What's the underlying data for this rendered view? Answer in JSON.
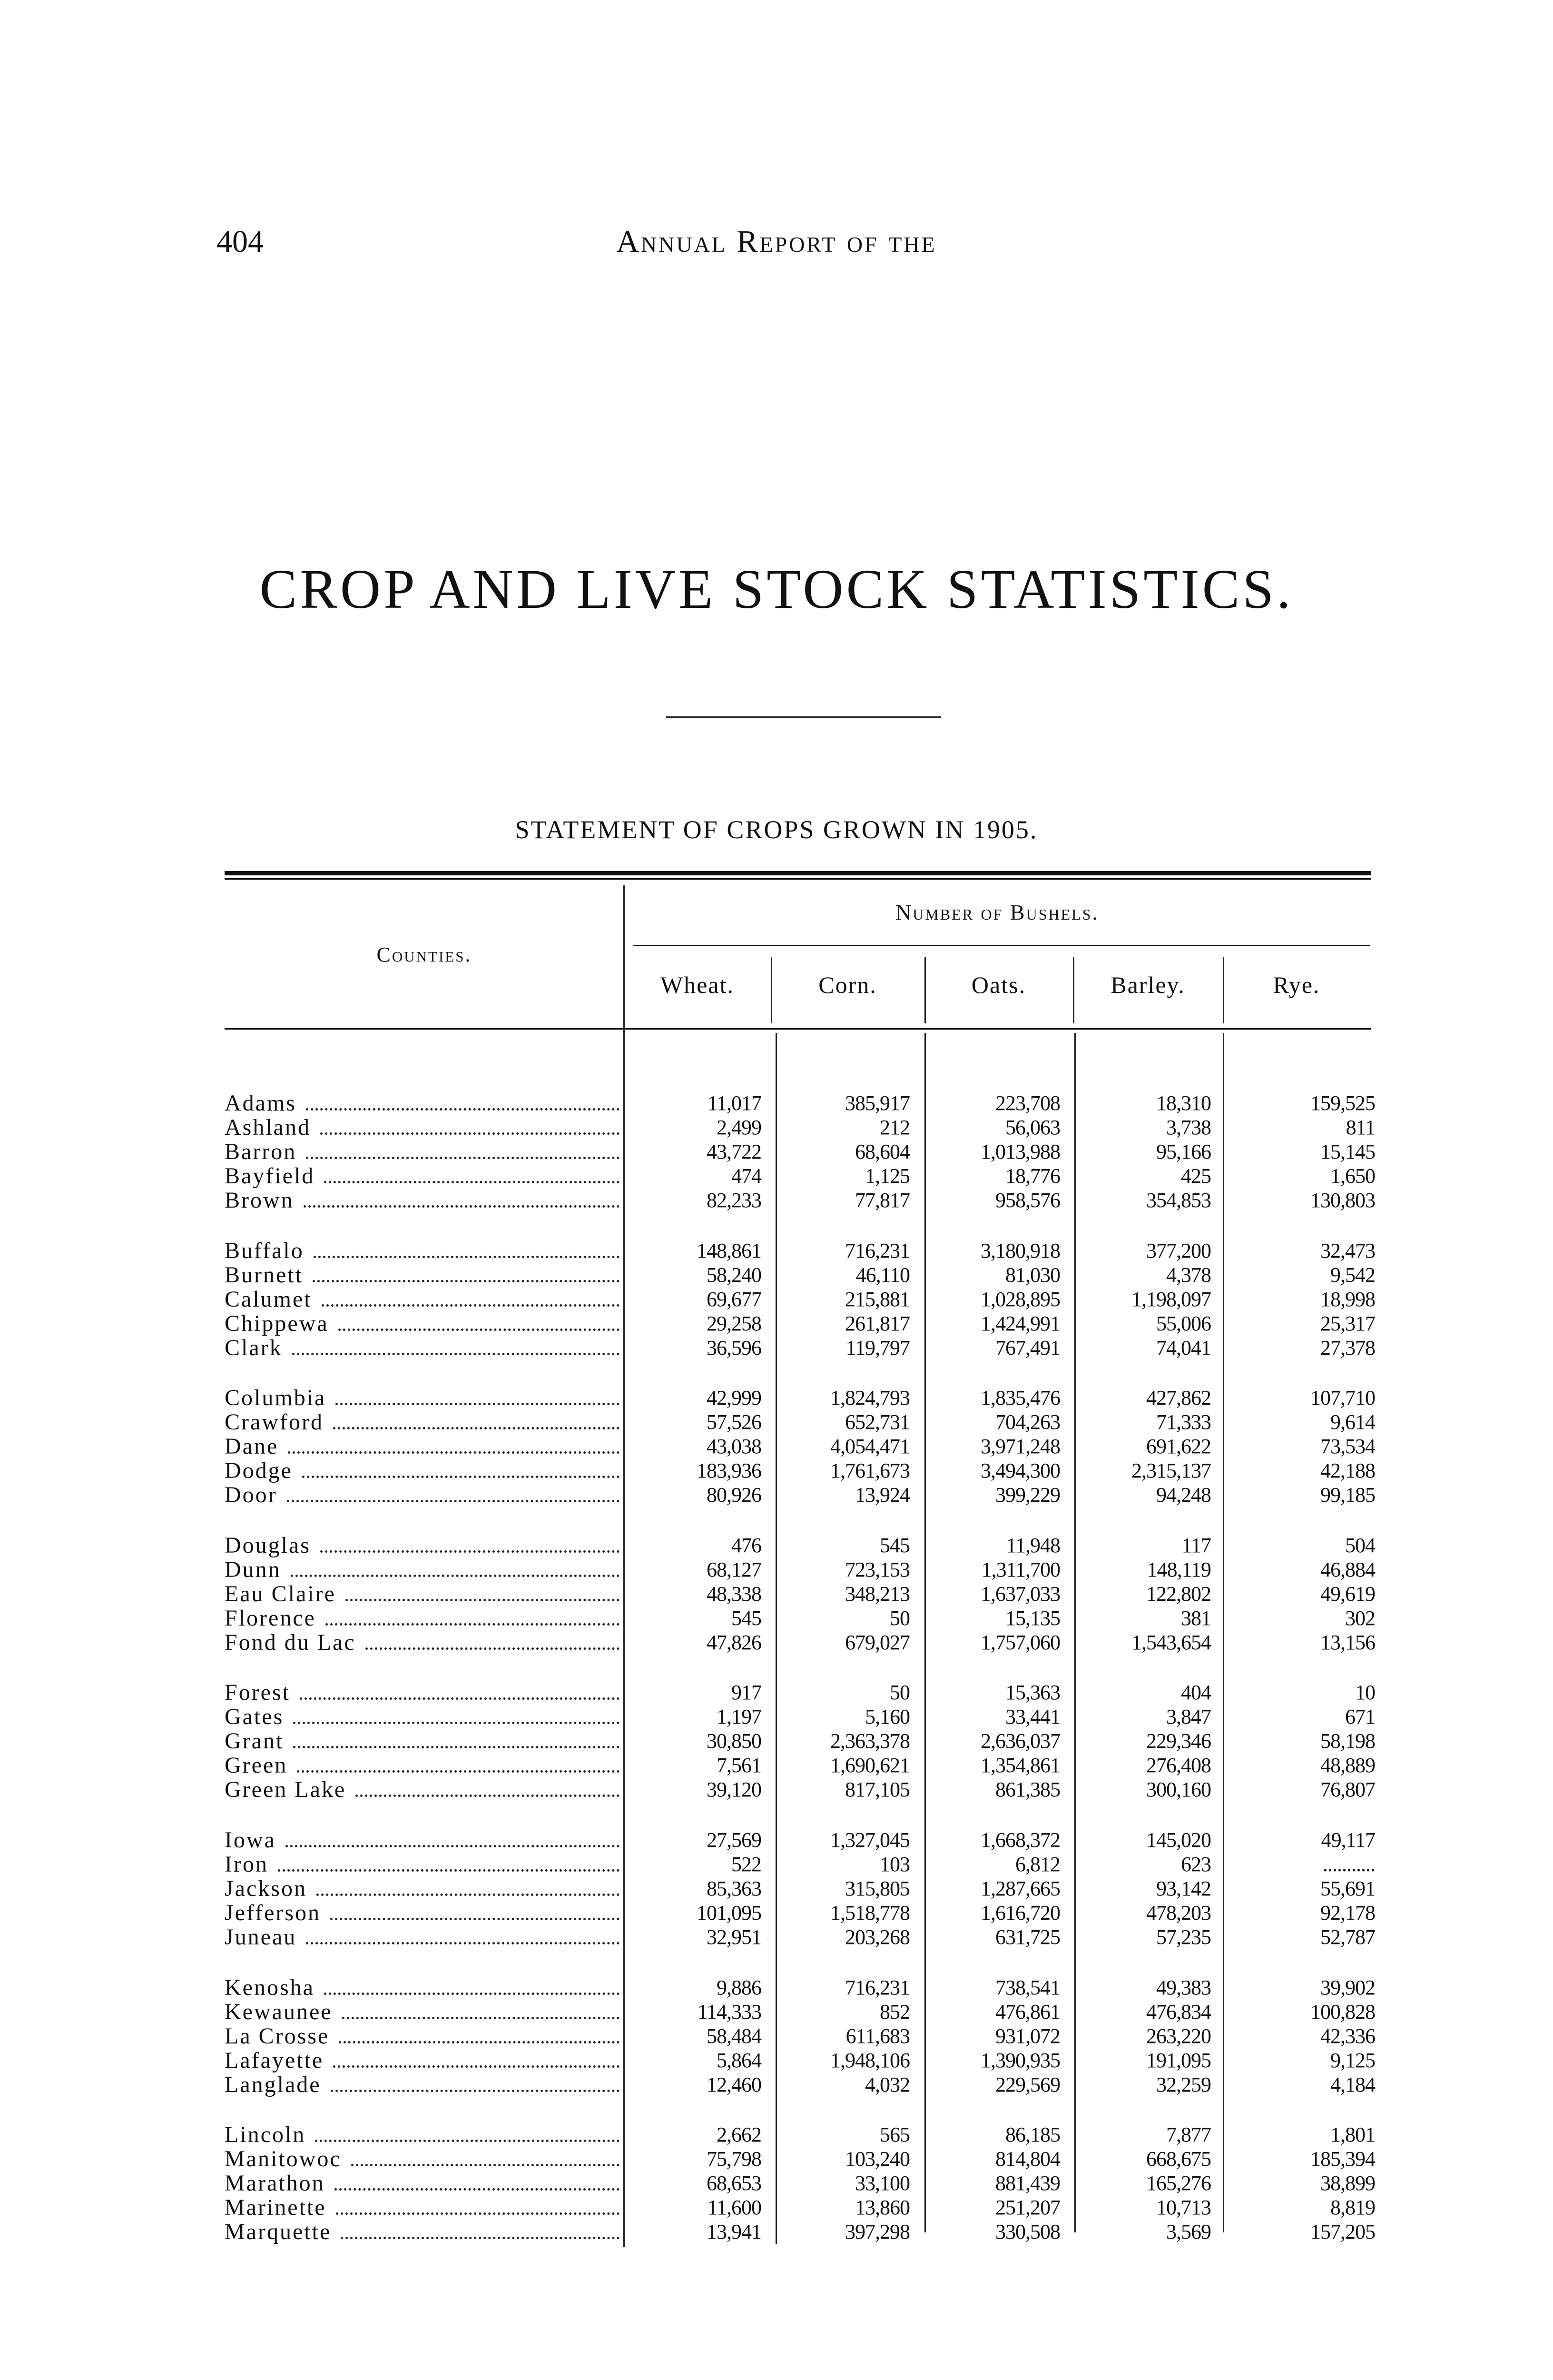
{
  "page_number": "404",
  "running_head": "Annual Report of the",
  "title": "CROP AND LIVE STOCK STATISTICS.",
  "subtitle": "STATEMENT OF CROPS GROWN IN 1905.",
  "table": {
    "counties_header": "Counties.",
    "group_header": "Number of Bushels.",
    "columns": [
      "Wheat.",
      "Corn.",
      "Oats.",
      "Barley.",
      "Rye."
    ],
    "groups": [
      [
        [
          "Adams",
          "11,017",
          "385,917",
          "223,708",
          "18,310",
          "159,525"
        ],
        [
          "Ashland",
          "2,499",
          "212",
          "56,063",
          "3,738",
          "811"
        ],
        [
          "Barron",
          "43,722",
          "68,604",
          "1,013,988",
          "95,166",
          "15,145"
        ],
        [
          "Bayfield",
          "474",
          "1,125",
          "18,776",
          "425",
          "1,650"
        ],
        [
          "Brown",
          "82,233",
          "77,817",
          "958,576",
          "354,853",
          "130,803"
        ]
      ],
      [
        [
          "Buffalo",
          "148,861",
          "716,231",
          "3,180,918",
          "377,200",
          "32,473"
        ],
        [
          "Burnett",
          "58,240",
          "46,110",
          "81,030",
          "4,378",
          "9,542"
        ],
        [
          "Calumet",
          "69,677",
          "215,881",
          "1,028,895",
          "1,198,097",
          "18,998"
        ],
        [
          "Chippewa",
          "29,258",
          "261,817",
          "1,424,991",
          "55,006",
          "25,317"
        ],
        [
          "Clark",
          "36,596",
          "119,797",
          "767,491",
          "74,041",
          "27,378"
        ]
      ],
      [
        [
          "Columbia",
          "42,999",
          "1,824,793",
          "1,835,476",
          "427,862",
          "107,710"
        ],
        [
          "Crawford",
          "57,526",
          "652,731",
          "704,263",
          "71,333",
          "9,614"
        ],
        [
          "Dane",
          "43,038",
          "4,054,471",
          "3,971,248",
          "691,622",
          "73,534"
        ],
        [
          "Dodge",
          "183,936",
          "1,761,673",
          "3,494,300",
          "2,315,137",
          "42,188"
        ],
        [
          "Door",
          "80,926",
          "13,924",
          "399,229",
          "94,248",
          "99,185"
        ]
      ],
      [
        [
          "Douglas",
          "476",
          "545",
          "11,948",
          "117",
          "504"
        ],
        [
          "Dunn",
          "68,127",
          "723,153",
          "1,311,700",
          "148,119",
          "46,884"
        ],
        [
          "Eau Claire",
          "48,338",
          "348,213",
          "1,637,033",
          "122,802",
          "49,619"
        ],
        [
          "Florence",
          "545",
          "50",
          "15,135",
          "381",
          "302"
        ],
        [
          "Fond du Lac",
          "47,826",
          "679,027",
          "1,757,060",
          "1,543,654",
          "13,156"
        ]
      ],
      [
        [
          "Forest",
          "917",
          "50",
          "15,363",
          "404",
          "10"
        ],
        [
          "Gates",
          "1,197",
          "5,160",
          "33,441",
          "3,847",
          "671"
        ],
        [
          "Grant",
          "30,850",
          "2,363,378",
          "2,636,037",
          "229,346",
          "58,198"
        ],
        [
          "Green",
          "7,561",
          "1,690,621",
          "1,354,861",
          "276,408",
          "48,889"
        ],
        [
          "Green Lake",
          "39,120",
          "817,105",
          "861,385",
          "300,160",
          "76,807"
        ]
      ],
      [
        [
          "Iowa",
          "27,569",
          "1,327,045",
          "1,668,372",
          "145,020",
          "49,117"
        ],
        [
          "Iron",
          "522",
          "103",
          "6,812",
          "623",
          "..........."
        ],
        [
          "Jackson",
          "85,363",
          "315,805",
          "1,287,665",
          "93,142",
          "55,691"
        ],
        [
          "Jefferson",
          "101,095",
          "1,518,778",
          "1,616,720",
          "478,203",
          "92,178"
        ],
        [
          "Juneau",
          "32,951",
          "203,268",
          "631,725",
          "57,235",
          "52,787"
        ]
      ],
      [
        [
          "Kenosha",
          "9,886",
          "716,231",
          "738,541",
          "49,383",
          "39,902"
        ],
        [
          "Kewaunee",
          "114,333",
          "852",
          "476,861",
          "476,834",
          "100,828"
        ],
        [
          "La Crosse",
          "58,484",
          "611,683",
          "931,072",
          "263,220",
          "42,336"
        ],
        [
          "Lafayette",
          "5,864",
          "1,948,106",
          "1,390,935",
          "191,095",
          "9,125"
        ],
        [
          "Langlade",
          "12,460",
          "4,032",
          "229,569",
          "32,259",
          "4,184"
        ]
      ],
      [
        [
          "Lincoln",
          "2,662",
          "565",
          "86,185",
          "7,877",
          "1,801"
        ],
        [
          "Manitowoc",
          "75,798",
          "103,240",
          "814,804",
          "668,675",
          "185,394"
        ],
        [
          "Marathon",
          "68,653",
          "33,100",
          "881,439",
          "165,276",
          "38,899"
        ],
        [
          "Marinette",
          "11,600",
          "13,860",
          "251,207",
          "10,713",
          "8,819"
        ],
        [
          "Marquette",
          "13,941",
          "397,298",
          "330,508",
          "3,569",
          "157,205"
        ]
      ]
    ]
  }
}
